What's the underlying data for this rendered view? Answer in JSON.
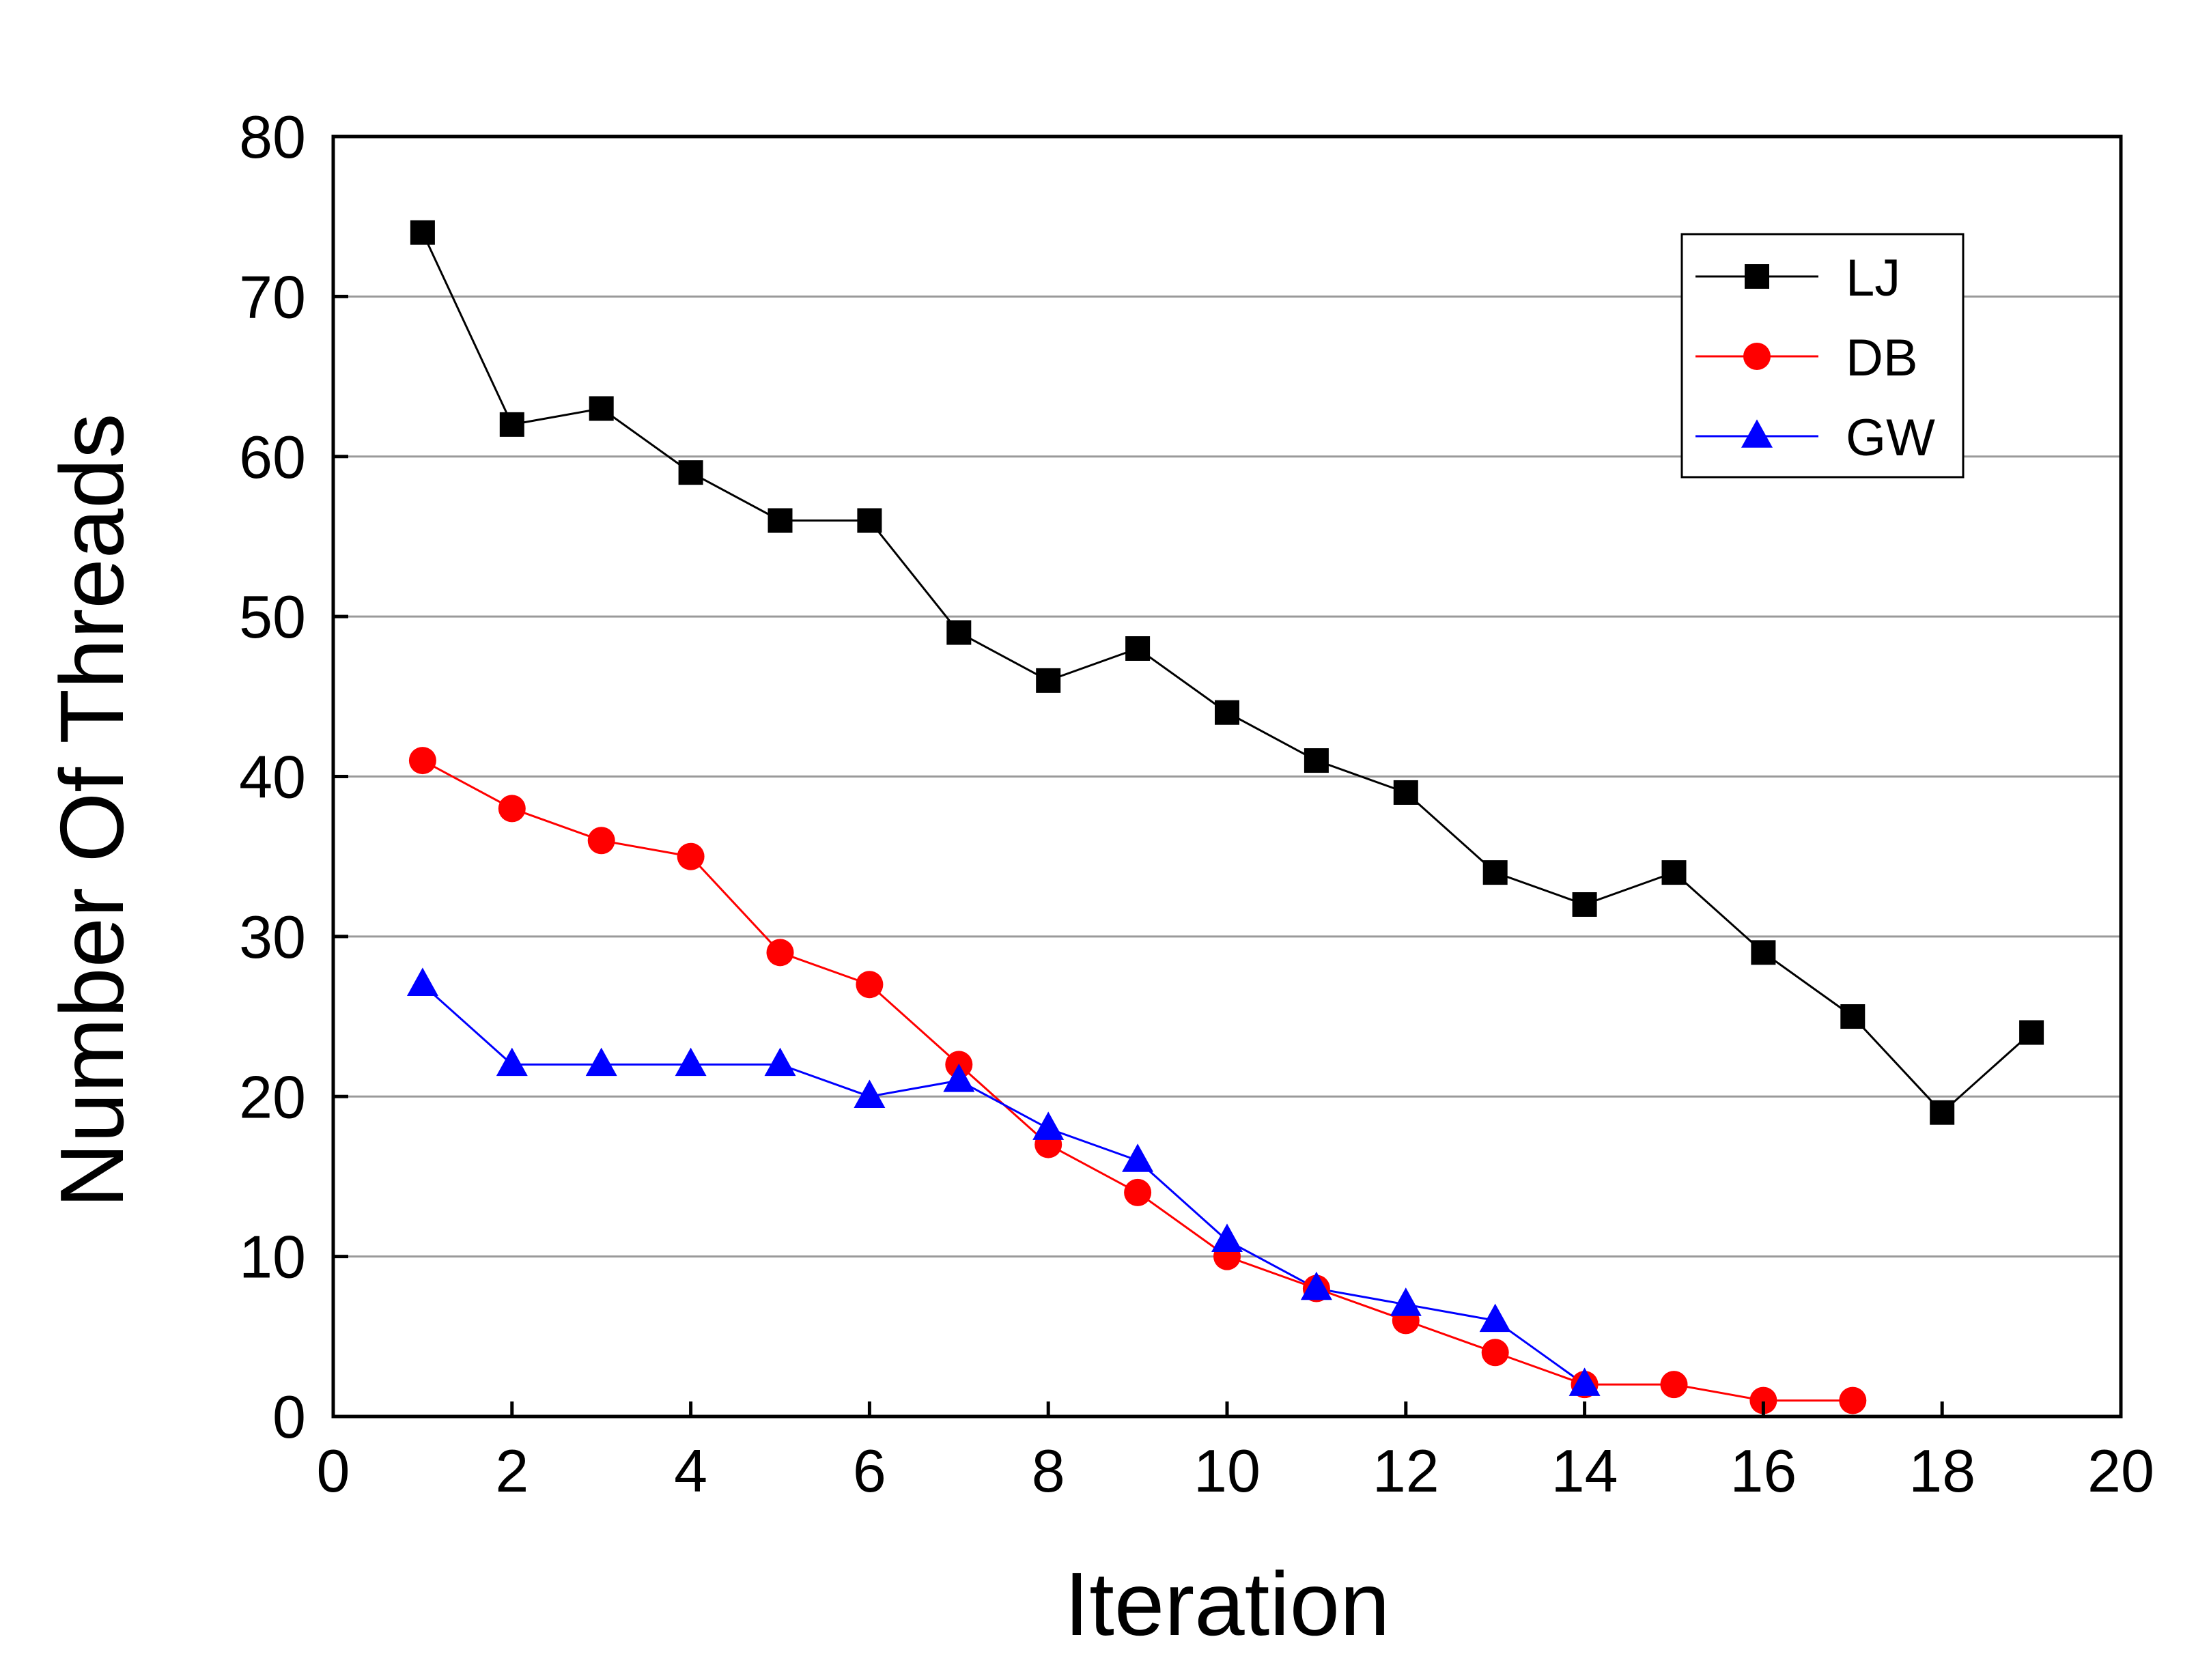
{
  "chart_data": {
    "type": "line",
    "title": "",
    "xlabel": "Iteration",
    "ylabel": "Number Of Threads",
    "xlim": [
      0,
      20
    ],
    "ylim": [
      0,
      80
    ],
    "xticks": [
      "0",
      "2",
      "4",
      "6",
      "8",
      "10",
      "12",
      "14",
      "16",
      "18",
      "20"
    ],
    "yticks": [
      "0",
      "10",
      "20",
      "30",
      "40",
      "50",
      "60",
      "70",
      "80"
    ],
    "xtick_values": [
      0,
      2,
      4,
      6,
      8,
      10,
      12,
      14,
      16,
      18,
      20
    ],
    "ytick_values": [
      0,
      10,
      20,
      30,
      40,
      50,
      60,
      70,
      80
    ],
    "grid": "horizontal",
    "legend_position": "top-right",
    "series": [
      {
        "name": "LJ",
        "color": "#000000",
        "marker": "square",
        "x": [
          1,
          2,
          3,
          4,
          5,
          6,
          7,
          8,
          9,
          10,
          11,
          12,
          13,
          14,
          15,
          16,
          17,
          18,
          19
        ],
        "y": [
          74,
          62,
          63,
          59,
          56,
          56,
          49,
          46,
          48,
          44,
          41,
          39,
          34,
          32,
          34,
          29,
          25,
          19,
          24
        ]
      },
      {
        "name": "DB",
        "color": "#ff0000",
        "marker": "circle",
        "x": [
          1,
          2,
          3,
          4,
          5,
          6,
          7,
          8,
          9,
          10,
          11,
          12,
          13,
          14,
          15,
          16,
          17
        ],
        "y": [
          41,
          38,
          36,
          35,
          29,
          27,
          22,
          17,
          14,
          10,
          8,
          6,
          4,
          2,
          2,
          1,
          1
        ]
      },
      {
        "name": "GW",
        "color": "#0000ff",
        "marker": "triangle",
        "x": [
          1,
          2,
          3,
          4,
          5,
          6,
          7,
          8,
          9,
          10,
          11,
          12,
          13,
          14
        ],
        "y": [
          27,
          22,
          22,
          22,
          22,
          20,
          21,
          18,
          16,
          11,
          8,
          7,
          6,
          2
        ]
      }
    ]
  }
}
